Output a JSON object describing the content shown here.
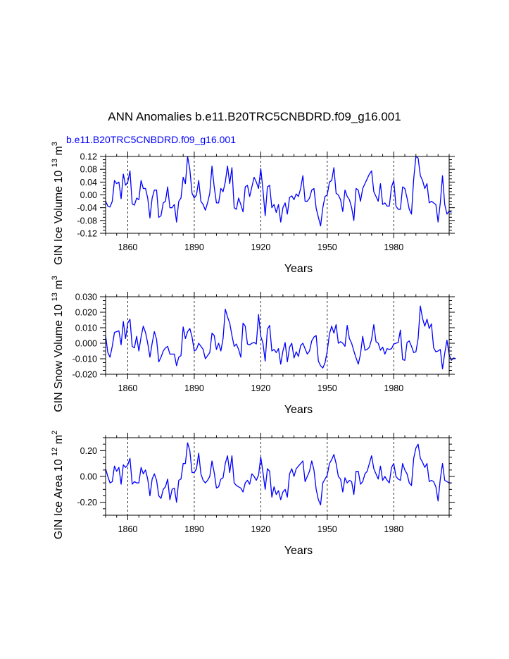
{
  "title": "ANN Anomalies b.e11.B20TRC5CNBDRD.f09_g16.001",
  "subtitle": "b.e11.B20TRC5CNBDRD.f09_g16.001",
  "line_color": "#0000ff",
  "chart_data": [
    {
      "type": "line",
      "ylabel": "GIN Ice Volume 10",
      "ylabel_sup": "13",
      "ylabel_unit": "m",
      "ylabel_unit_sup": "3",
      "xlabel": "Years",
      "xlim": [
        1850,
        2005
      ],
      "ylim": [
        -0.12,
        0.12
      ],
      "yticks": [
        -0.12,
        -0.08,
        -0.04,
        0.0,
        0.04,
        0.08,
        0.12
      ],
      "ytick_labels": [
        "-0.12",
        "-0.08",
        "-0.04",
        "0.00",
        "0.04",
        "0.08",
        "0.12"
      ],
      "xticks": [
        1860,
        1890,
        1920,
        1950,
        1980
      ],
      "xtick_labels": [
        "1860",
        "1890",
        "1920",
        "1950",
        "1980"
      ],
      "x_start": 1850,
      "values": [
        -0.02,
        -0.035,
        -0.038,
        -0.02,
        0.045,
        0.035,
        0.04,
        -0.012,
        0.065,
        0.03,
        0.04,
        0.075,
        -0.028,
        -0.032,
        -0.01,
        -0.015,
        0.045,
        0.02,
        0.02,
        -0.01,
        -0.072,
        -0.01,
        0.015,
        0.015,
        -0.07,
        -0.065,
        -0.025,
        -0.02,
        0.025,
        -0.04,
        -0.04,
        -0.03,
        -0.085,
        -0.02,
        -0.01,
        0.055,
        0.035,
        0.12,
        0.08,
        0.005,
        -0.01,
        0.0,
        0.045,
        -0.02,
        -0.03,
        -0.048,
        -0.025,
        0.005,
        0.09,
        0.025,
        -0.025,
        -0.025,
        0.02,
        0.01,
        0.04,
        0.09,
        0.035,
        0.085,
        -0.04,
        -0.045,
        -0.01,
        -0.03,
        -0.053,
        0.025,
        0.03,
        -0.005,
        0.025,
        0.055,
        0.04,
        0.02,
        0.082,
        0.015,
        -0.065,
        0.025,
        0.03,
        -0.04,
        -0.03,
        -0.055,
        -0.03,
        -0.085,
        -0.04,
        -0.025,
        -0.06,
        -0.008,
        -0.003,
        -0.015,
        0.003,
        -0.005,
        0.02,
        0.06,
        -0.02,
        -0.02,
        -0.01,
        0.015,
        0.02,
        -0.042,
        -0.07,
        -0.097,
        -0.04,
        -0.005,
        0.0,
        0.04,
        0.045,
        0.085,
        0.005,
        0.0,
        -0.015,
        -0.052,
        0.015,
        -0.005,
        -0.015,
        -0.04,
        -0.08,
        0.02,
        0.015,
        -0.02,
        0.02,
        0.035,
        0.05,
        0.065,
        0.075,
        0.01,
        -0.005,
        -0.02,
        0.035,
        -0.03,
        -0.025,
        -0.035,
        -0.035,
        0.025,
        0.045,
        -0.035,
        -0.045,
        -0.045,
        0.025,
        0.02,
        -0.01,
        -0.045,
        -0.06,
        0.05,
        0.12,
        0.115,
        0.06,
        0.045,
        0.02,
        0.035,
        -0.025,
        -0.02,
        -0.025,
        -0.03,
        -0.085,
        -0.025,
        0.06,
        -0.03,
        -0.06,
        -0.05,
        -0.055
      ]
    },
    {
      "type": "line",
      "ylabel": "GIN Snow Volume 10",
      "ylabel_sup": "13",
      "ylabel_unit": "m",
      "ylabel_unit_sup": "3",
      "xlabel": "Years",
      "xlim": [
        1850,
        2005
      ],
      "ylim": [
        -0.02,
        0.03
      ],
      "yticks": [
        -0.02,
        -0.01,
        0.0,
        0.01,
        0.02,
        0.03
      ],
      "ytick_labels": [
        "-0.020",
        "-0.010",
        "0.000",
        "0.010",
        "0.020",
        "0.030"
      ],
      "xticks": [
        1860,
        1890,
        1920,
        1950,
        1980
      ],
      "xtick_labels": [
        "1860",
        "1890",
        "1920",
        "1950",
        "1980"
      ],
      "x_start": 1850,
      "values": [
        0.005,
        -0.006,
        -0.009,
        -0.002,
        0.007,
        0.0075,
        0.008,
        -0.001,
        0.014,
        0.003,
        0.013,
        0.0155,
        -0.002,
        -0.003,
        0.0045,
        -0.005,
        0.004,
        0.011,
        0.007,
        0.0,
        -0.009,
        0.0,
        0.0075,
        0.0025,
        -0.012,
        -0.009,
        -0.005,
        -0.003,
        -0.002,
        -0.007,
        -0.007,
        -0.007,
        -0.0145,
        -0.009,
        -0.008,
        0.0105,
        0.003,
        0.0075,
        0.0095,
        0.004,
        -0.005,
        -0.004,
        0.0,
        -0.002,
        -0.004,
        -0.01,
        -0.008,
        -0.006,
        0.0065,
        0.005,
        -0.004,
        0.0,
        -0.005,
        0.003,
        0.022,
        0.017,
        0.013,
        0.005,
        -0.002,
        -0.0005,
        -0.004,
        -0.009,
        0.013,
        0.011,
        -0.0005,
        -0.001,
        0.0,
        0.0005,
        -0.0005,
        0.0185,
        0.0045,
        0.0,
        -0.0115,
        0.009,
        0.0115,
        -0.005,
        -0.004,
        -0.006,
        -0.0035,
        -0.0135,
        -0.005,
        0.0005,
        -0.012,
        -0.0025,
        0.0,
        -0.0095,
        -0.0055,
        -0.0085,
        -0.0015,
        0.0,
        -0.0035,
        -0.007,
        -0.005,
        0.0015,
        0.004,
        0.005,
        -0.0115,
        -0.0145,
        -0.016,
        -0.0125,
        -0.005,
        0.006,
        0.011,
        0.0065,
        0.012,
        0.0,
        0.001,
        0.0,
        -0.002,
        0.0115,
        0.003,
        0.0,
        -0.005,
        -0.0095,
        -0.0135,
        -0.007,
        0.0045,
        -0.0045,
        -0.004,
        -0.0025,
        0.0025,
        0.012,
        0.001,
        0.0,
        -0.0045,
        -0.0025,
        -0.007,
        -0.0035,
        -0.004,
        -0.0035,
        -0.0005,
        0.0,
        0.0005,
        0.0085,
        -0.0105,
        -0.011,
        0.0005,
        0.0015,
        -0.002,
        -0.006,
        -0.0055,
        0.003,
        0.024,
        0.016,
        0.011,
        0.0155,
        0.0095,
        0.0125,
        -0.003,
        -0.0055,
        -0.005,
        -0.004,
        -0.0165,
        -0.0065,
        0.002,
        -0.0075,
        -0.011,
        -0.0095,
        -0.01
      ]
    },
    {
      "type": "line",
      "ylabel": "GIN Ice Area 10",
      "ylabel_sup": "12",
      "ylabel_unit": "m",
      "ylabel_unit_sup": "2",
      "xlabel": "Years",
      "xlim": [
        1850,
        2005
      ],
      "ylim": [
        -0.3,
        0.3
      ],
      "yticks": [
        -0.2,
        0.0,
        0.2
      ],
      "ytick_labels": [
        "-0.20",
        "0.00",
        "0.20"
      ],
      "xticks": [
        1860,
        1890,
        1920,
        1950,
        1980
      ],
      "xtick_labels": [
        "1860",
        "1890",
        "1920",
        "1950",
        "1980"
      ],
      "x_start": 1850,
      "values": [
        0.06,
        0.0,
        -0.05,
        -0.04,
        0.08,
        0.04,
        0.07,
        -0.06,
        0.09,
        0.07,
        0.09,
        0.14,
        -0.06,
        -0.04,
        -0.05,
        -0.05,
        0.07,
        0.02,
        0.05,
        -0.02,
        -0.15,
        -0.02,
        0.02,
        -0.03,
        -0.15,
        -0.17,
        -0.1,
        -0.08,
        -0.02,
        -0.18,
        -0.1,
        -0.09,
        -0.2,
        -0.03,
        -0.02,
        0.1,
        0.1,
        0.26,
        0.2,
        0.03,
        0.03,
        0.06,
        0.18,
        0.02,
        -0.03,
        -0.05,
        -0.03,
        0.0,
        0.12,
        0.03,
        -0.09,
        -0.08,
        -0.02,
        -0.01,
        0.1,
        0.16,
        0.03,
        0.16,
        -0.05,
        -0.07,
        -0.08,
        -0.09,
        -0.12,
        -0.05,
        -0.03,
        -0.06,
        0.02,
        0.0,
        -0.03,
        0.01,
        0.15,
        0.03,
        -0.1,
        0.06,
        0.04,
        -0.16,
        -0.08,
        -0.14,
        -0.11,
        -0.18,
        -0.12,
        -0.1,
        -0.16,
        0.02,
        0.06,
        0.0,
        0.06,
        0.08,
        0.1,
        0.12,
        -0.04,
        0.0,
        0.04,
        0.12,
        0.05,
        -0.1,
        -0.18,
        -0.22,
        -0.05,
        -0.02,
        0.01,
        0.1,
        0.13,
        0.17,
        0.1,
        0.0,
        -0.02,
        -0.12,
        -0.01,
        -0.05,
        -0.03,
        -0.04,
        -0.14,
        0.04,
        0.04,
        -0.06,
        -0.04,
        0.02,
        0.04,
        0.1,
        0.16,
        0.06,
        0.02,
        -0.02,
        0.08,
        -0.03,
        0.0,
        -0.03,
        -0.05,
        0.07,
        0.1,
        0.0,
        -0.02,
        -0.03,
        0.1,
        0.05,
        0.02,
        -0.05,
        -0.07,
        0.14,
        0.22,
        0.25,
        0.14,
        0.11,
        0.07,
        0.1,
        -0.04,
        -0.03,
        -0.04,
        -0.08,
        -0.19,
        -0.02,
        0.1,
        -0.03,
        -0.04,
        -0.05,
        -0.05
      ]
    }
  ]
}
